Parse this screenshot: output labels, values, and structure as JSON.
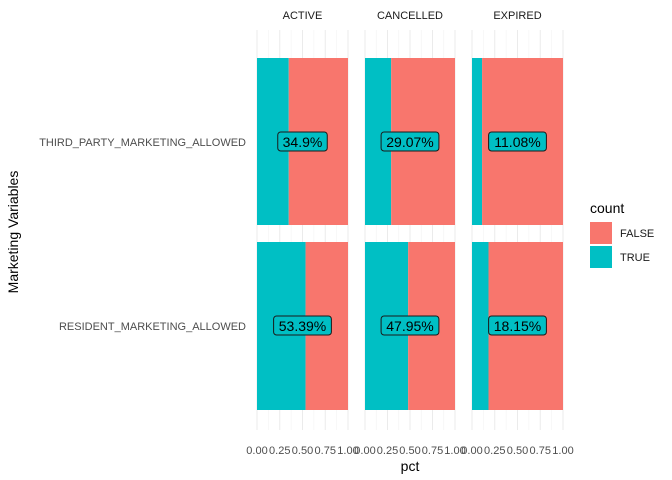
{
  "chart_data": {
    "type": "bar",
    "orientation": "horizontal",
    "stacked": true,
    "facet_variable": "status",
    "facets": [
      "ACTIVE",
      "CANCELLED",
      "EXPIRED"
    ],
    "categories": [
      "THIRD_PARTY_MARKETING_ALLOWED",
      "RESIDENT_MARKETING_ALLOWED"
    ],
    "xlabel": "pct",
    "ylabel": "Marketing Variables",
    "xlim": [
      0,
      1
    ],
    "x_ticks": [
      "0.00",
      "0.25",
      "0.50",
      "0.75",
      "1.00"
    ],
    "grid": true,
    "legend": {
      "title": "count",
      "placement": "right",
      "entries": [
        {
          "label": "FALSE",
          "color": "#F8766D"
        },
        {
          "label": "TRUE",
          "color": "#00BFC4"
        }
      ]
    },
    "series_true": [
      {
        "facet": "ACTIVE",
        "values": [
          0.349,
          0.5339
        ],
        "labels": [
          "34.9%",
          "53.39%"
        ]
      },
      {
        "facet": "CANCELLED",
        "values": [
          0.2907,
          0.4795
        ],
        "labels": [
          "29.07%",
          "47.95%"
        ]
      },
      {
        "facet": "EXPIRED",
        "values": [
          0.1108,
          0.1815
        ],
        "labels": [
          "11.08%",
          "18.15%"
        ]
      }
    ]
  }
}
